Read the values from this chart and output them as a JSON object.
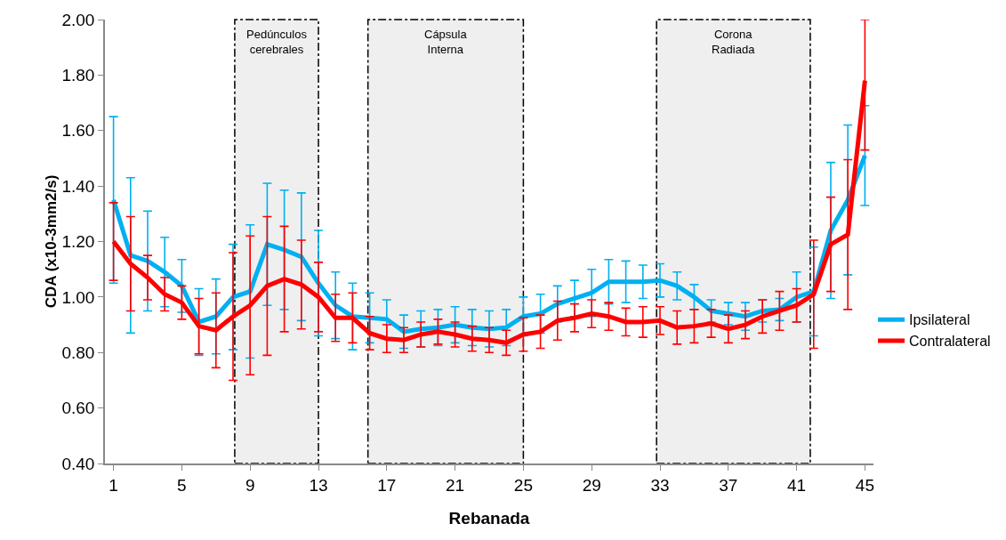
{
  "chart_data": {
    "type": "line",
    "xlabel": "Rebanada",
    "ylabel": "CDA (x10-3mm2/s)",
    "x": [
      1,
      2,
      3,
      4,
      5,
      6,
      7,
      8,
      9,
      10,
      11,
      12,
      13,
      14,
      15,
      16,
      17,
      18,
      19,
      20,
      21,
      22,
      23,
      24,
      25,
      26,
      27,
      28,
      29,
      30,
      31,
      32,
      33,
      34,
      35,
      36,
      37,
      38,
      39,
      40,
      41,
      42,
      43,
      44,
      45
    ],
    "series": [
      {
        "name": "Ipsilateral",
        "color": "#00b0f0",
        "values": [
          1.35,
          1.15,
          1.13,
          1.09,
          1.04,
          0.91,
          0.93,
          1.0,
          1.02,
          1.19,
          1.17,
          1.145,
          1.05,
          0.97,
          0.93,
          0.925,
          0.92,
          0.875,
          0.885,
          0.89,
          0.9,
          0.89,
          0.885,
          0.89,
          0.93,
          0.94,
          0.975,
          0.995,
          1.015,
          1.055,
          1.055,
          1.055,
          1.06,
          1.04,
          1.0,
          0.95,
          0.94,
          0.93,
          0.95,
          0.955,
          1.0,
          1.02,
          1.24,
          1.35,
          1.51
        ],
        "errors": [
          0.3,
          0.28,
          0.18,
          0.125,
          0.095,
          0.12,
          0.135,
          0.19,
          0.24,
          0.22,
          0.215,
          0.23,
          0.19,
          0.12,
          0.12,
          0.09,
          0.07,
          0.06,
          0.065,
          0.065,
          0.065,
          0.065,
          0.065,
          0.065,
          0.07,
          0.07,
          0.065,
          0.065,
          0.085,
          0.08,
          0.075,
          0.06,
          0.06,
          0.05,
          0.045,
          0.04,
          0.04,
          0.05,
          0.04,
          0.04,
          0.09,
          0.16,
          0.245,
          0.27,
          0.18
        ]
      },
      {
        "name": "Contralateral",
        "color": "#ff0000",
        "values": [
          1.2,
          1.12,
          1.07,
          1.01,
          0.98,
          0.895,
          0.88,
          0.93,
          0.97,
          1.04,
          1.065,
          1.045,
          1.0,
          0.925,
          0.925,
          0.87,
          0.85,
          0.845,
          0.865,
          0.875,
          0.865,
          0.85,
          0.845,
          0.835,
          0.865,
          0.875,
          0.915,
          0.925,
          0.94,
          0.93,
          0.91,
          0.91,
          0.915,
          0.89,
          0.895,
          0.905,
          0.885,
          0.9,
          0.93,
          0.95,
          0.97,
          1.01,
          1.19,
          1.225,
          1.78
        ],
        "errors": [
          0.14,
          0.17,
          0.08,
          0.06,
          0.06,
          0.1,
          0.135,
          0.23,
          0.25,
          0.25,
          0.19,
          0.16,
          0.125,
          0.085,
          0.09,
          0.06,
          0.05,
          0.045,
          0.045,
          0.045,
          0.045,
          0.045,
          0.045,
          0.045,
          0.06,
          0.06,
          0.07,
          0.05,
          0.05,
          0.05,
          0.05,
          0.055,
          0.05,
          0.06,
          0.06,
          0.05,
          0.05,
          0.05,
          0.06,
          0.07,
          0.06,
          0.195,
          0.17,
          0.27,
          [
            1.53,
            2.0
          ]
        ]
      }
    ],
    "xlim": [
      0.5,
      45.5
    ],
    "xticks": [
      1,
      5,
      9,
      13,
      17,
      21,
      25,
      29,
      33,
      37,
      41,
      45
    ],
    "ylim": [
      0.4,
      2.0
    ],
    "yticks": [
      {
        "value": 0.4,
        "label": "0.40"
      },
      {
        "value": 0.6,
        "label": "0.60"
      },
      {
        "value": 0.8,
        "label": "0.80"
      },
      {
        "value": 1.0,
        "label": "1.00"
      },
      {
        "value": 1.2,
        "label": "1.20"
      },
      {
        "value": 1.4,
        "label": "1.40"
      },
      {
        "value": 1.6,
        "label": "1.60"
      },
      {
        "value": 1.8,
        "label": "1.80"
      },
      {
        "value": 2.0,
        "label": "2.00"
      }
    ],
    "bands": [
      {
        "axis": "x",
        "from": 8.1,
        "to": 13,
        "label": "Pedúnculos\ncerebrales",
        "color": "#000000"
      },
      {
        "axis": "x",
        "from": 15.9,
        "to": 25,
        "label": "Cápsula\nInterna",
        "color": "#000000"
      },
      {
        "axis": "x",
        "from": 32.8,
        "to": 41.8,
        "label": "Corona\nRadiada",
        "color": "#000000"
      }
    ],
    "grid": false,
    "legend": "right",
    "marker": "none",
    "line_style": "solid"
  }
}
